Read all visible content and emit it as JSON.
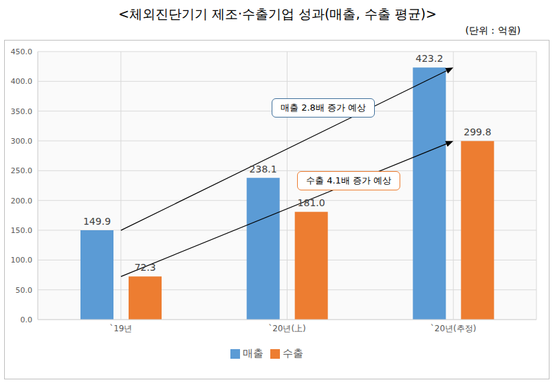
{
  "chart_data": {
    "type": "bar",
    "title": "<체외진단기기 제조·수출기업 성과(매출, 수출 평균)>",
    "subtitle": "(단위 : 억원)",
    "categories": [
      "`19년",
      "`20년(上)",
      "`20년(추정)"
    ],
    "series": [
      {
        "name": "매출",
        "color": "#5b9bd5",
        "values": [
          149.9,
          238.1,
          423.2
        ],
        "value_labels": [
          "149.9",
          "238.1",
          "423.2"
        ]
      },
      {
        "name": "수출",
        "color": "#ed7d31",
        "values": [
          72.3,
          181.0,
          299.8
        ],
        "value_labels": [
          "72.3",
          "181.0",
          "299.8"
        ]
      }
    ],
    "ylim": [
      0,
      450
    ],
    "yticks": [
      {
        "value": 0,
        "label": "0.0"
      },
      {
        "value": 50,
        "label": "50.0"
      },
      {
        "value": 100,
        "label": "100.0"
      },
      {
        "value": 150,
        "label": "150.0"
      },
      {
        "value": 200,
        "label": "200.0"
      },
      {
        "value": 250,
        "label": "250.0"
      },
      {
        "value": 300,
        "label": "300.0"
      },
      {
        "value": 350,
        "label": "350.0"
      },
      {
        "value": 400,
        "label": "400.0"
      },
      {
        "value": 450,
        "label": "450.0"
      }
    ],
    "grid": true,
    "legend": "bottom",
    "data_labels": true,
    "annotations": [
      "매출 2.8배 증가 예상",
      "수출 4.1배 증가 예상"
    ]
  }
}
